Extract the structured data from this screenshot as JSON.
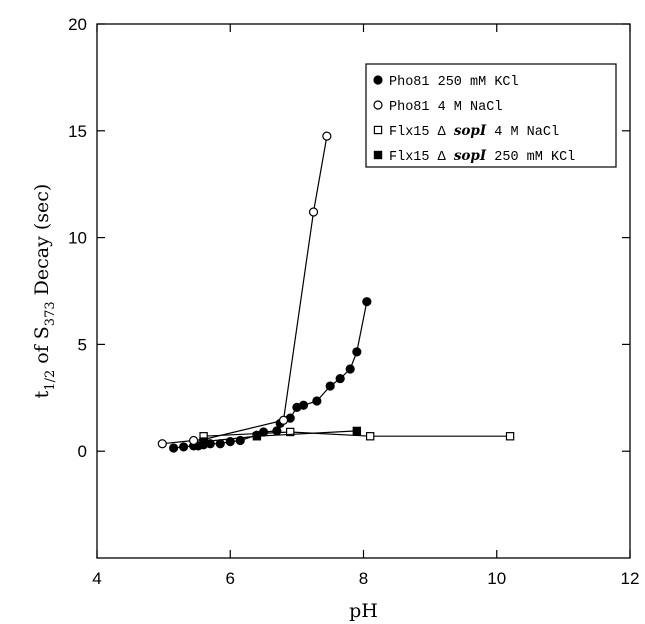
{
  "chart_data": {
    "type": "scatter",
    "xlabel": "pH",
    "ylabel": {
      "prefix": "t",
      "prefix_sub": "1/2",
      "middle": " of S",
      "middle_sub": "373",
      "suffix": " Decay (sec)"
    },
    "xlim": [
      4,
      12
    ],
    "ylim": [
      -5,
      20
    ],
    "x_ticks": [
      4,
      6,
      8,
      10,
      12
    ],
    "y_ticks": [
      0,
      5,
      10,
      15,
      20
    ],
    "grid": false,
    "legend_position": "top-right",
    "series": [
      {
        "name": "Pho81 250 mM KCl",
        "legend_parts": [
          "Pho81 250 mM KCl"
        ],
        "marker": "circle",
        "filled": true,
        "x": [
          5.15,
          5.3,
          5.45,
          5.52,
          5.6,
          5.7,
          5.85,
          6.0,
          6.15,
          6.4,
          6.5,
          6.7,
          6.75,
          6.9,
          7.0,
          7.1,
          7.3,
          7.5,
          7.65,
          7.8,
          7.9,
          8.05
        ],
        "y": [
          0.15,
          0.2,
          0.25,
          0.25,
          0.3,
          0.35,
          0.35,
          0.45,
          0.5,
          0.75,
          0.9,
          0.95,
          1.3,
          1.55,
          2.05,
          2.15,
          2.35,
          3.05,
          3.4,
          3.85,
          4.65,
          7.0
        ]
      },
      {
        "name": "Pho81 4 M NaCl",
        "legend_parts": [
          "Pho81 4 M NaCl"
        ],
        "marker": "circle",
        "filled": false,
        "x": [
          4.98,
          5.45,
          5.6,
          6.8,
          7.25,
          7.45
        ],
        "y": [
          0.35,
          0.5,
          0.55,
          1.45,
          11.2,
          14.75
        ]
      },
      {
        "name": "Flx15 Δ sopI 4 M NaCl",
        "legend_parts": [
          "Flx15 Δ ",
          "sopI",
          " 4 M NaCl"
        ],
        "marker": "square",
        "filled": false,
        "x": [
          5.6,
          6.9,
          8.1,
          10.2
        ],
        "y": [
          0.7,
          0.9,
          0.7,
          0.7
        ]
      },
      {
        "name": "Flx15 Δ sopI 250 mM KCl",
        "legend_parts": [
          "Flx15 Δ ",
          "sopI",
          " 250 mM KCl"
        ],
        "marker": "square",
        "filled": true,
        "x": [
          5.6,
          6.4,
          7.9
        ],
        "y": [
          0.45,
          0.7,
          0.95
        ]
      }
    ]
  }
}
